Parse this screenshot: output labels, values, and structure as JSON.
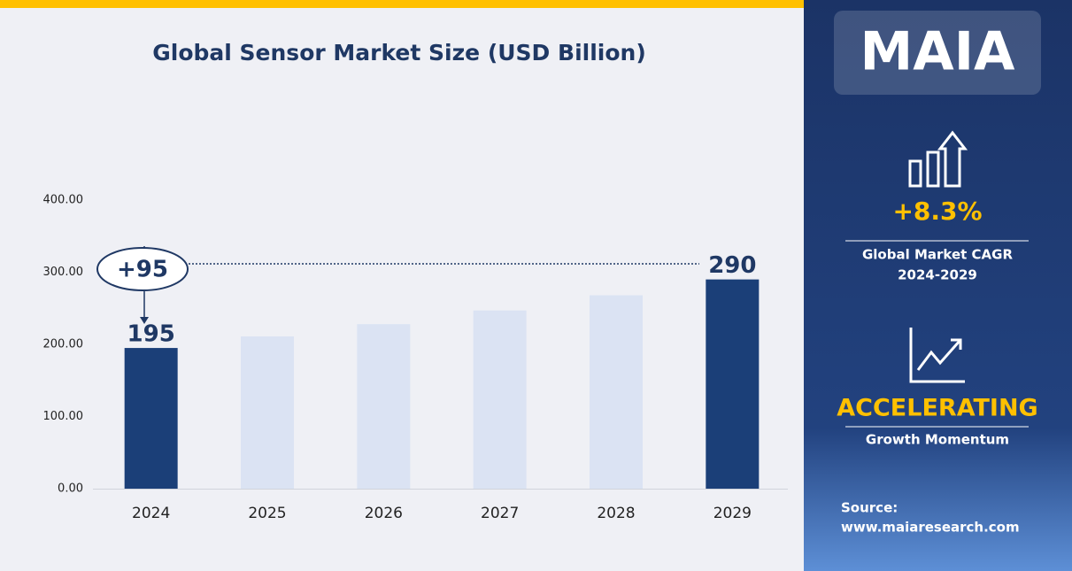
{
  "chart_data": {
    "type": "bar",
    "title": "Global Sensor Market Size (USD  Billion)",
    "categories": [
      "2024",
      "2025",
      "2026",
      "2027",
      "2028",
      "2029"
    ],
    "values": [
      195,
      211,
      228,
      247,
      268,
      290
    ],
    "value_labels": [
      "195",
      null,
      null,
      null,
      null,
      "290"
    ],
    "colors": [
      "#1b3f78",
      "#dbe3f3",
      "#dbe3f3",
      "#dbe3f3",
      "#dbe3f3",
      "#1b3f78"
    ],
    "ylim": [
      0,
      400
    ],
    "yticks": [
      {
        "value": 0,
        "label": "0.00"
      },
      {
        "value": 100,
        "label": "100.00"
      },
      {
        "value": 200,
        "label": "200.00"
      },
      {
        "value": 300,
        "label": "300.00"
      },
      {
        "value": 400,
        "label": "400.00"
      }
    ],
    "grid": false,
    "annotation": "+95"
  },
  "sidebar": {
    "brand": "MAIA",
    "cagr": "+8.3%",
    "cagr_label": [
      "Global Market CAGR",
      "2024-2029"
    ],
    "momentum": "ACCELERATING",
    "momentum_label": "Growth Momentum",
    "source": [
      "Source:",
      "www.maiaresearch.com"
    ]
  }
}
